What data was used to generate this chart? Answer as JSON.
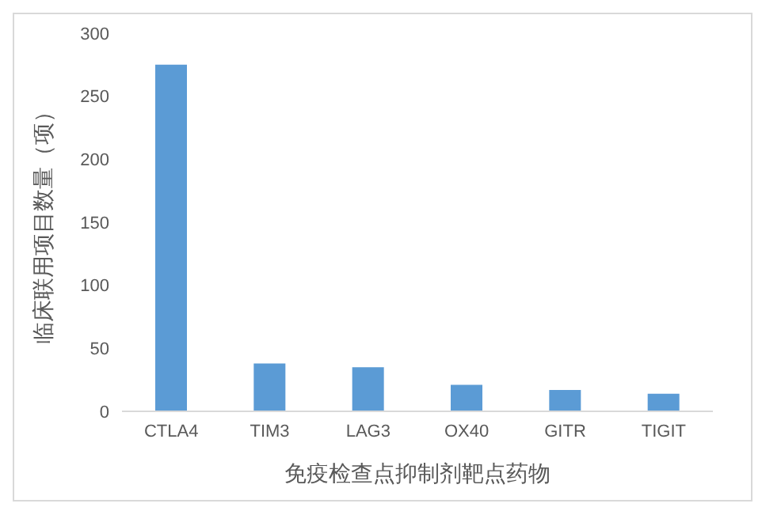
{
  "chart_data": {
    "type": "bar",
    "xlabel": "免疫检查点抑制剂靶点药物",
    "ylabel": "临床联用项目数量（项）",
    "categories": [
      "CTLA4",
      "TIM3",
      "LAG3",
      "OX40",
      "GITR",
      "TIGIT"
    ],
    "values": [
      275,
      38,
      35,
      21,
      17,
      14
    ],
    "color": "#5b9bd5",
    "ylim": [
      0,
      300
    ],
    "yticks": [
      0,
      50,
      100,
      150,
      200,
      250,
      300
    ],
    "grid": false,
    "legend": false
  }
}
